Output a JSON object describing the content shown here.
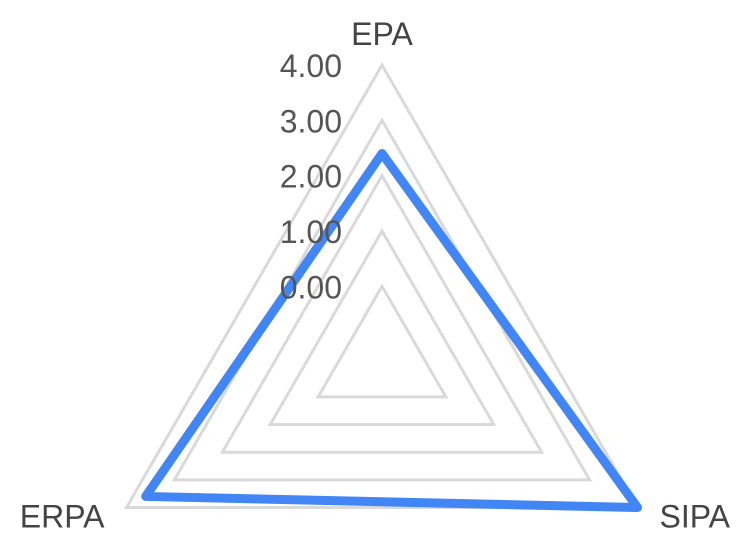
{
  "chart_data": {
    "type": "radar",
    "categories": [
      "EPA",
      "SIPA",
      "ERPA"
    ],
    "series": [
      {
        "values": [
          2.4,
          4.0,
          3.6
        ]
      }
    ],
    "rlim": [
      0,
      4
    ],
    "ticks": [
      "0.00",
      "1.00",
      "2.00",
      "3.00",
      "4.00"
    ],
    "tick_values": [
      0,
      1,
      2,
      3,
      4
    ],
    "grid": true,
    "legend": "none"
  },
  "colors": {
    "series": "#4285f4",
    "grid": "#d9d9d9",
    "text": "#555555"
  }
}
